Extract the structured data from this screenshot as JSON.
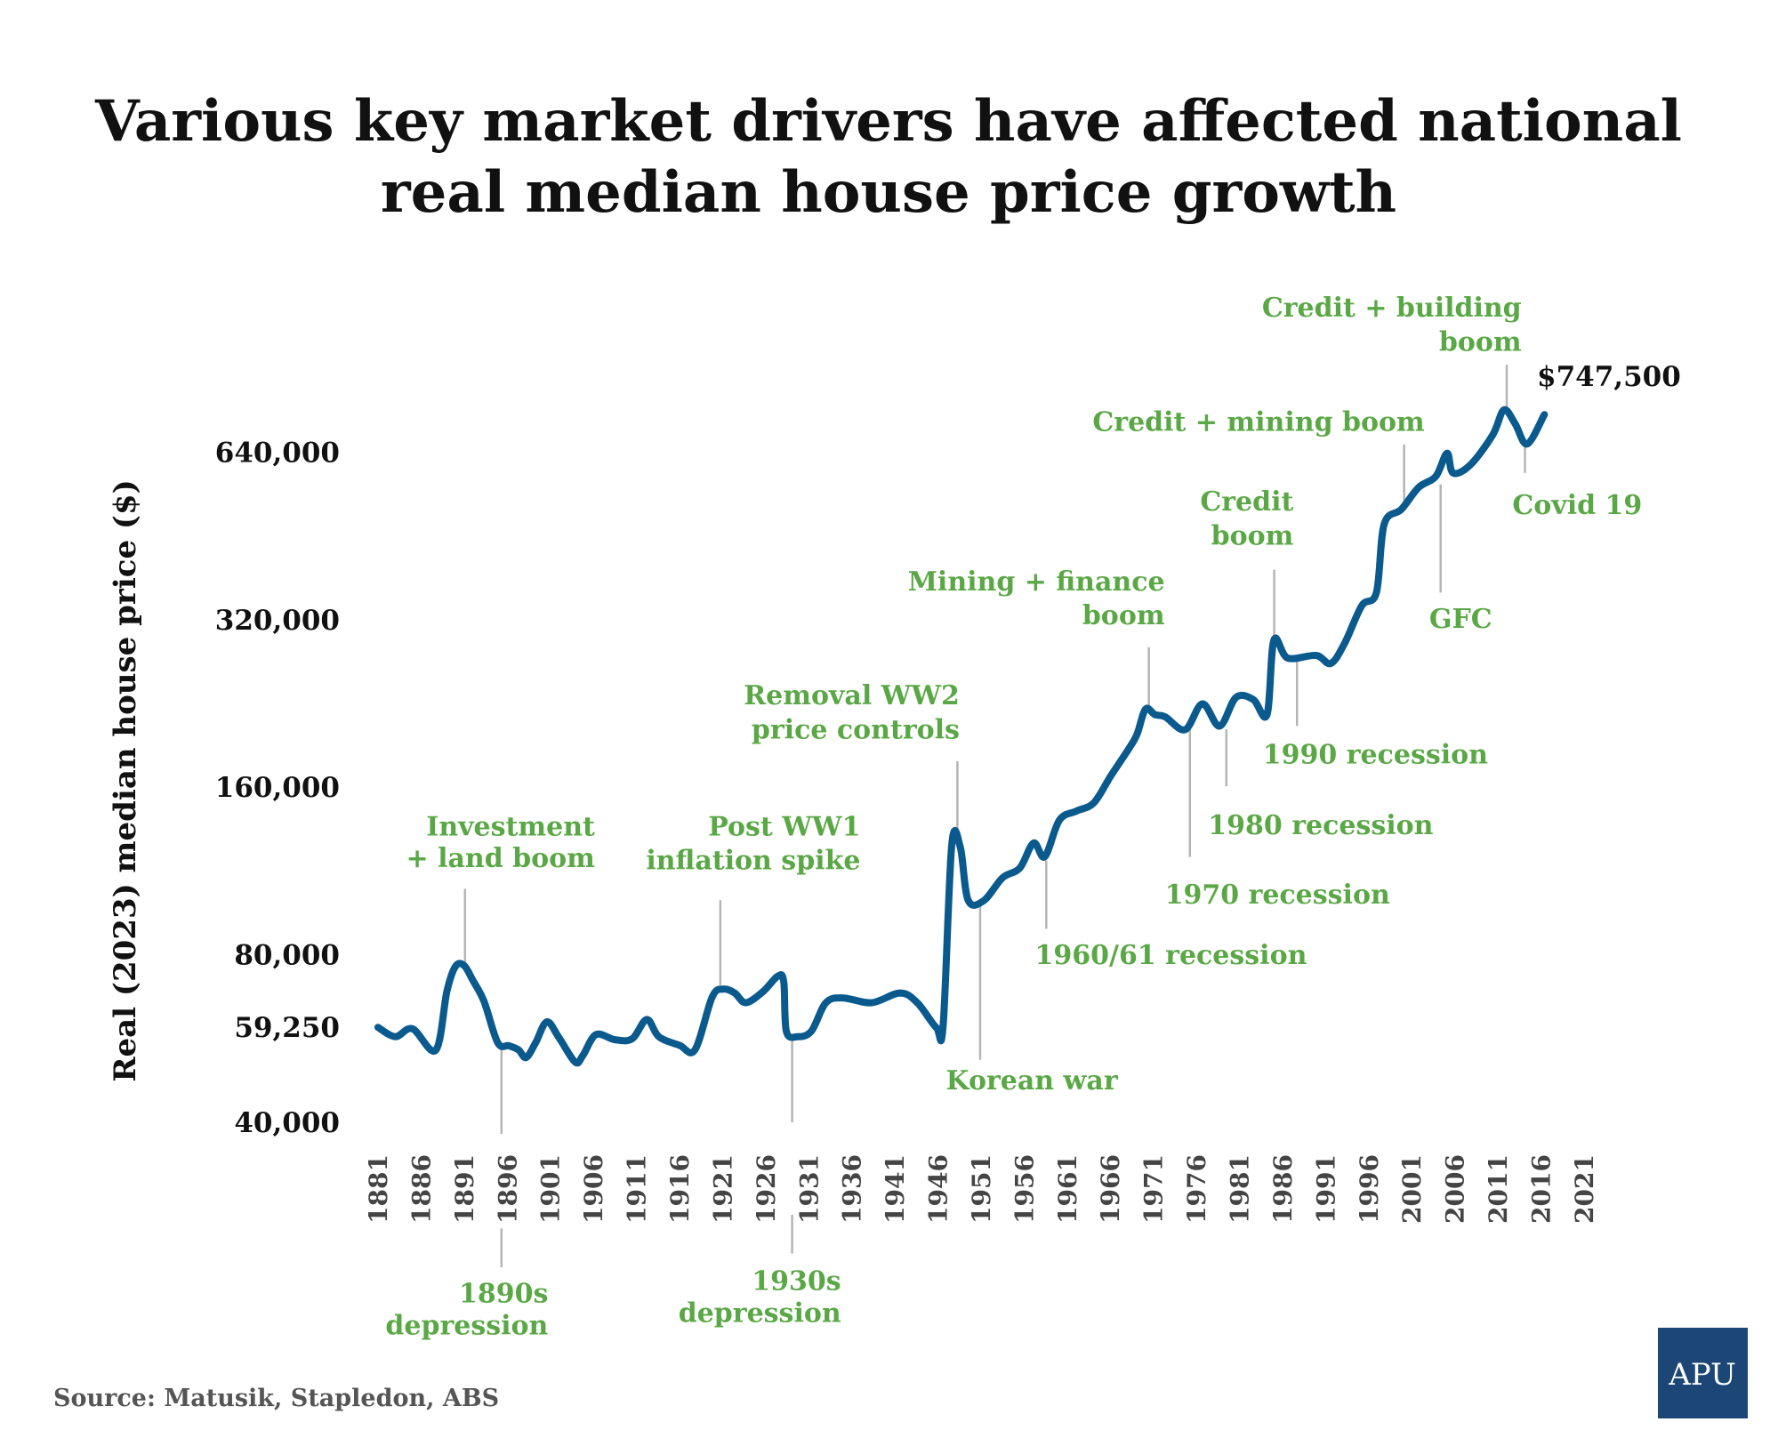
{
  "title": [
    "Various key market drivers have affected national",
    "real median house price growth"
  ],
  "source": "Source: Matusik, Stapledon, ABS",
  "logo": "APU",
  "colors": {
    "line": "#0b5a8e",
    "annotation": "#5aa845",
    "highlight": "#e0412b",
    "logo": "#1b4675"
  },
  "chart_data": {
    "type": "line",
    "ylabel": "Real (2023) median house price ($)",
    "yscale": "log2",
    "ylim": [
      40000,
      747500
    ],
    "yticks": [
      "640,000",
      "320,000",
      "160,000",
      "80,000",
      "40,000"
    ],
    "ytick_values": [
      640000,
      320000,
      160000,
      80000,
      40000
    ],
    "xticks": [
      "1881",
      "1886",
      "1891",
      "1896",
      "1901",
      "1906",
      "1911",
      "1916",
      "1921",
      "1926",
      "1931",
      "1936",
      "1941",
      "1946",
      "1951",
      "1956",
      "1961",
      "1966",
      "1971",
      "1976",
      "1981",
      "1986",
      "1991",
      "1996",
      "2001",
      "2006",
      "2011",
      "2016",
      "2021"
    ],
    "grid": false,
    "start_label": "59,250",
    "end_label": "$747,500",
    "x": [
      1881,
      1883,
      1885,
      1887.7,
      1889,
      1890,
      1891,
      1892,
      1893.3,
      1894.9,
      1896.2,
      1897.3,
      1898.2,
      1899.3,
      1900.6,
      1902,
      1903.9,
      1904.8,
      1906.3,
      1908.5,
      1910.5,
      1912.2,
      1913.6,
      1916,
      1917.8,
      1919.8,
      1921.1,
      1922.4,
      1923.7,
      1925.7,
      1927.4,
      1928.1,
      1928.4,
      1929.7,
      1931.3,
      1933,
      1935,
      1938.3,
      1941.6,
      1943.6,
      1945.8,
      1946.6,
      1947.6,
      1948.6,
      1949.5,
      1951.3,
      1953.5,
      1955.5,
      1957.1,
      1958.4,
      1960.1,
      1962.1,
      1964.1,
      1966.1,
      1968.1,
      1969.1,
      1970.1,
      1971.2,
      1972.4,
      1974.7,
      1976.7,
      1978.7,
      1980.6,
      1982.6,
      1984.2,
      1985,
      1986.6,
      1989.9,
      1991.6,
      1993.2,
      1995.2,
      1996.9,
      1997.8,
      1999.8,
      2001.8,
      2003.8,
      2005.1,
      2005.8,
      2007.8,
      2010.4,
      2011.7,
      2013,
      2014.4,
      2016.4
    ],
    "y": [
      59250,
      57000,
      58900,
      53900,
      68800,
      76300,
      76500,
      72000,
      66000,
      55600,
      54900,
      54000,
      52300,
      55600,
      60600,
      56800,
      51300,
      52800,
      57500,
      56300,
      56500,
      61200,
      57000,
      55000,
      54000,
      67200,
      69400,
      68300,
      65600,
      68700,
      73200,
      71600,
      58300,
      57000,
      58300,
      65600,
      66900,
      65600,
      68300,
      65600,
      59200,
      59600,
      125800,
      124700,
      100300,
      100000,
      110000,
      114500,
      127000,
      120000,
      139600,
      145000,
      150000,
      168000,
      187000,
      199000,
      221000,
      216000,
      214000,
      203000,
      226000,
      206000,
      232000,
      230000,
      216000,
      294000,
      273000,
      276000,
      267000,
      290000,
      339000,
      358000,
      475000,
      505000,
      553000,
      579000,
      637000,
      587000,
      607000,
      687000,
      762000,
      720000,
      662000,
      747500
    ],
    "annotations": [
      {
        "lines": [
          "Investment",
          "+ land boom"
        ],
        "year": 1891
      },
      {
        "lines": [
          "Post WW1",
          "inflation spike"
        ],
        "year": 1921
      },
      {
        "lines": [
          "Removal WW2",
          "price controls"
        ],
        "year": 1948
      },
      {
        "lines": [
          "Mining + finance",
          "boom"
        ],
        "year": 1970
      },
      {
        "lines": [
          "Credit",
          "boom"
        ],
        "year": 1985
      },
      {
        "lines": [
          "Credit + mining boom"
        ],
        "year": 2000
      },
      {
        "lines": [
          "Credit + building",
          "boom"
        ],
        "year": 2011
      },
      {
        "lines": [
          "Covid 19"
        ],
        "year": 2014
      },
      {
        "lines": [
          "GFC"
        ],
        "year": 2005
      },
      {
        "lines": [
          "1990 recession"
        ],
        "year": 1988
      },
      {
        "lines": [
          "1980 recession"
        ],
        "year": 1980
      },
      {
        "lines": [
          "1970 recession"
        ],
        "year": 1975
      },
      {
        "lines": [
          "1960/61 recession"
        ],
        "year": 1959
      },
      {
        "lines": [
          "Korean war"
        ],
        "year": 1951
      },
      {
        "lines": [
          "1890s",
          "depression"
        ],
        "year": 1895
      },
      {
        "lines": [
          "1930s",
          "depression"
        ],
        "year": 1929
      }
    ]
  }
}
